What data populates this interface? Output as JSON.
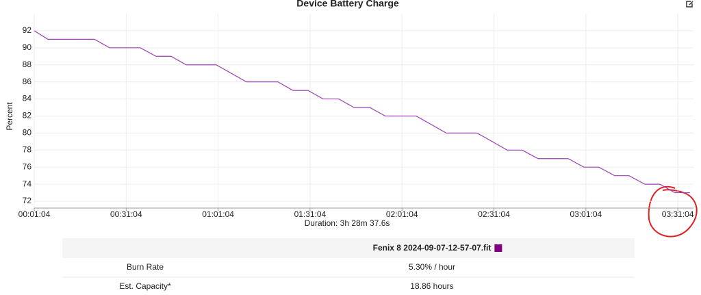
{
  "chart_data": {
    "type": "line",
    "title": "Device Battery Charge",
    "ylabel": "Percent",
    "xlabel": "Duration: 3h 28m 37.6s",
    "series": [
      {
        "name": "Fenix 8 2024-09-07-12-57-07.fit",
        "color": "#9c3fb5",
        "legend_color": "#800080",
        "x": [
          64,
          332,
          1243,
          1538,
          2141,
          2449,
          2744,
          3039,
          3628,
          4218,
          4834,
          5129,
          5424,
          5719,
          6027,
          6322,
          6630,
          6938,
          7541,
          8131,
          8734,
          9323,
          9618,
          9926,
          10516,
          10824,
          11119,
          11427,
          11709,
          12017,
          12312,
          12606,
          12901
        ],
        "values": [
          92,
          91,
          91,
          90,
          90,
          89,
          89,
          88,
          88,
          86,
          86,
          85,
          85,
          84,
          84,
          83,
          83,
          82,
          82,
          80,
          80,
          78,
          78,
          77,
          77,
          76,
          76,
          75,
          75,
          74,
          74,
          73,
          73
        ]
      }
    ],
    "xlim": [
      64,
      12970
    ],
    "ylim": [
      71.2,
      94
    ],
    "xticks": [
      {
        "value": 64,
        "label": "00:01:04"
      },
      {
        "value": 1864,
        "label": "00:31:04"
      },
      {
        "value": 3664,
        "label": "01:01:04"
      },
      {
        "value": 5464,
        "label": "01:31:04"
      },
      {
        "value": 7264,
        "label": "02:01:04"
      },
      {
        "value": 9064,
        "label": "02:31:04"
      },
      {
        "value": 10864,
        "label": "03:01:04"
      },
      {
        "value": 12664,
        "label": "03:31:04"
      }
    ],
    "yticks": [
      72,
      74,
      76,
      78,
      80,
      82,
      84,
      86,
      88,
      90,
      92
    ],
    "grid": true
  },
  "table": {
    "rows": [
      [
        "Burn Rate",
        "5.30% / hour"
      ],
      [
        "Est. Capacity*",
        "18.86 hours"
      ]
    ]
  }
}
